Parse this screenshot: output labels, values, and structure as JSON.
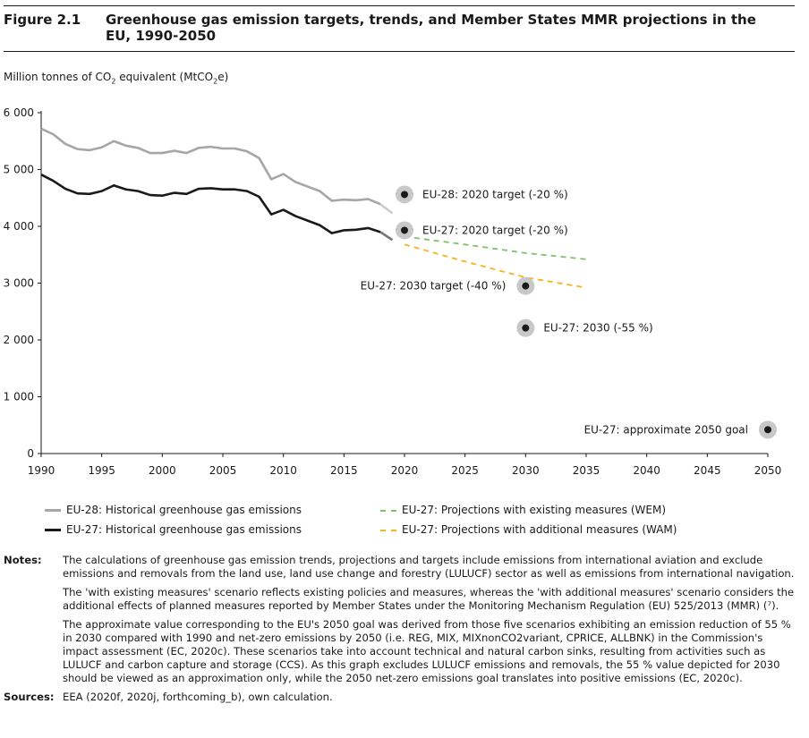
{
  "header": {
    "figure_label": "Figure 2.1",
    "title": "Greenhouse gas emission targets, trends, and Member States MMR projections in the EU, 1990-2050"
  },
  "unit_label": {
    "prefix": "Million tonnes of CO",
    "sub": "2",
    "middle": " equivalent (MtCO",
    "sub2": "2",
    "suffix": "e)"
  },
  "colors": {
    "eu28": "#a6a6a6",
    "eu27": "#1a1a1a",
    "wem": "#7fc06a",
    "wam": "#f2b51e",
    "marker_halo": "#c8c8c8"
  },
  "chart_data": {
    "type": "line",
    "xlim": [
      1990,
      2050
    ],
    "ylim": [
      0,
      6000
    ],
    "x_ticks": [
      1990,
      1995,
      2000,
      2005,
      2010,
      2015,
      2020,
      2025,
      2030,
      2035,
      2040,
      2045,
      2050
    ],
    "y_ticks": [
      0,
      1000,
      2000,
      3000,
      4000,
      5000,
      6000
    ],
    "y_tick_labels": [
      "0",
      "1 000",
      "2 000",
      "3 000",
      "4 000",
      "5 000",
      "6 000"
    ],
    "grid": false,
    "series": [
      {
        "name": "EU-28: Historical greenhouse gas emissions",
        "style": "solid",
        "x": [
          1990,
          1991,
          1992,
          1993,
          1994,
          1995,
          1996,
          1997,
          1998,
          1999,
          2000,
          2001,
          2002,
          2003,
          2004,
          2005,
          2006,
          2007,
          2008,
          2009,
          2010,
          2011,
          2012,
          2013,
          2014,
          2015,
          2016,
          2017,
          2018
        ],
        "y": [
          5720,
          5620,
          5450,
          5360,
          5340,
          5390,
          5500,
          5420,
          5380,
          5290,
          5290,
          5330,
          5290,
          5380,
          5400,
          5370,
          5370,
          5320,
          5200,
          4830,
          4920,
          4780,
          4700,
          4620,
          4450,
          4470,
          4460,
          4480,
          4390
        ],
        "tail": {
          "x": [
            2018,
            2019
          ],
          "y": [
            4390,
            4230
          ]
        }
      },
      {
        "name": "EU-27: Historical greenhouse gas emissions",
        "style": "solid",
        "x": [
          1990,
          1991,
          1992,
          1993,
          1994,
          1995,
          1996,
          1997,
          1998,
          1999,
          2000,
          2001,
          2002,
          2003,
          2004,
          2005,
          2006,
          2007,
          2008,
          2009,
          2010,
          2011,
          2012,
          2013,
          2014,
          2015,
          2016,
          2017,
          2018
        ],
        "y": [
          4910,
          4800,
          4660,
          4580,
          4570,
          4620,
          4720,
          4650,
          4620,
          4550,
          4540,
          4590,
          4570,
          4660,
          4670,
          4650,
          4650,
          4620,
          4520,
          4210,
          4290,
          4180,
          4100,
          4020,
          3880,
          3930,
          3940,
          3970,
          3900
        ],
        "tail": {
          "x": [
            2018,
            2019
          ],
          "y": [
            3900,
            3760
          ]
        }
      },
      {
        "name": "EU-27: Projections with existing measures (WEM)",
        "style": "dashed",
        "x": [
          2020,
          2025,
          2030,
          2035
        ],
        "y": [
          3820,
          3680,
          3530,
          3420
        ]
      },
      {
        "name": "EU-27: Projections with additional measures (WAM)",
        "style": "dashed",
        "x": [
          2020,
          2025,
          2030,
          2035
        ],
        "y": [
          3680,
          3380,
          3100,
          2920
        ]
      }
    ],
    "targets": [
      {
        "x": 2020,
        "y": 4560,
        "label": "EU-28: 2020 target (-20 %)",
        "label_side": "right"
      },
      {
        "x": 2020,
        "y": 3930,
        "label": "EU-27: 2020 target (-20 %)",
        "label_side": "right"
      },
      {
        "x": 2030,
        "y": 2950,
        "label": "EU-27: 2030 target (-40 %)",
        "label_side": "left"
      },
      {
        "x": 2030,
        "y": 2210,
        "label": "EU-27: 2030 (-55 %)",
        "label_side": "right"
      },
      {
        "x": 2050,
        "y": 420,
        "label": "EU-27: approximate 2050 goal",
        "label_side": "left"
      }
    ]
  },
  "notes": [
    {
      "key": "Notes:",
      "text": "The calculations of greenhouse gas emission trends, projections and targets include emissions from international aviation and exclude emissions and removals from the land use, land use change and forestry (LULUCF) sector as well as emissions from international navigation."
    },
    {
      "key": "",
      "text": "The 'with existing measures' scenario reflects existing policies and measures, whereas the 'with additional measures' scenario considers the additional effects of planned measures reported by Member States under the Monitoring Mechanism Regulation (EU) 525/2013 (MMR) (⁷)."
    },
    {
      "key": "",
      "text": "The approximate value corresponding to the EU's 2050 goal was derived from those five scenarios exhibiting an emission reduction of 55 % in 2030 compared with 1990 and net-zero emissions by 2050 (i.e. REG, MIX, MIXnonCO2variant, CPRICE, ALLBNK) in the Commission's impact assessment (EC, 2020c). These scenarios take into account technical and natural carbon sinks, resulting from activities such as LULUCF and carbon capture and storage (CCS). As this graph excludes LULUCF emissions and removals, the 55 % value depicted for 2030 should be viewed as an approximation only, while the 2050 net-zero emissions goal translates into positive emissions (EC, 2020c)."
    },
    {
      "key": "Sources:",
      "text": "EEA (2020f, 2020j, forthcoming_b), own calculation."
    }
  ]
}
